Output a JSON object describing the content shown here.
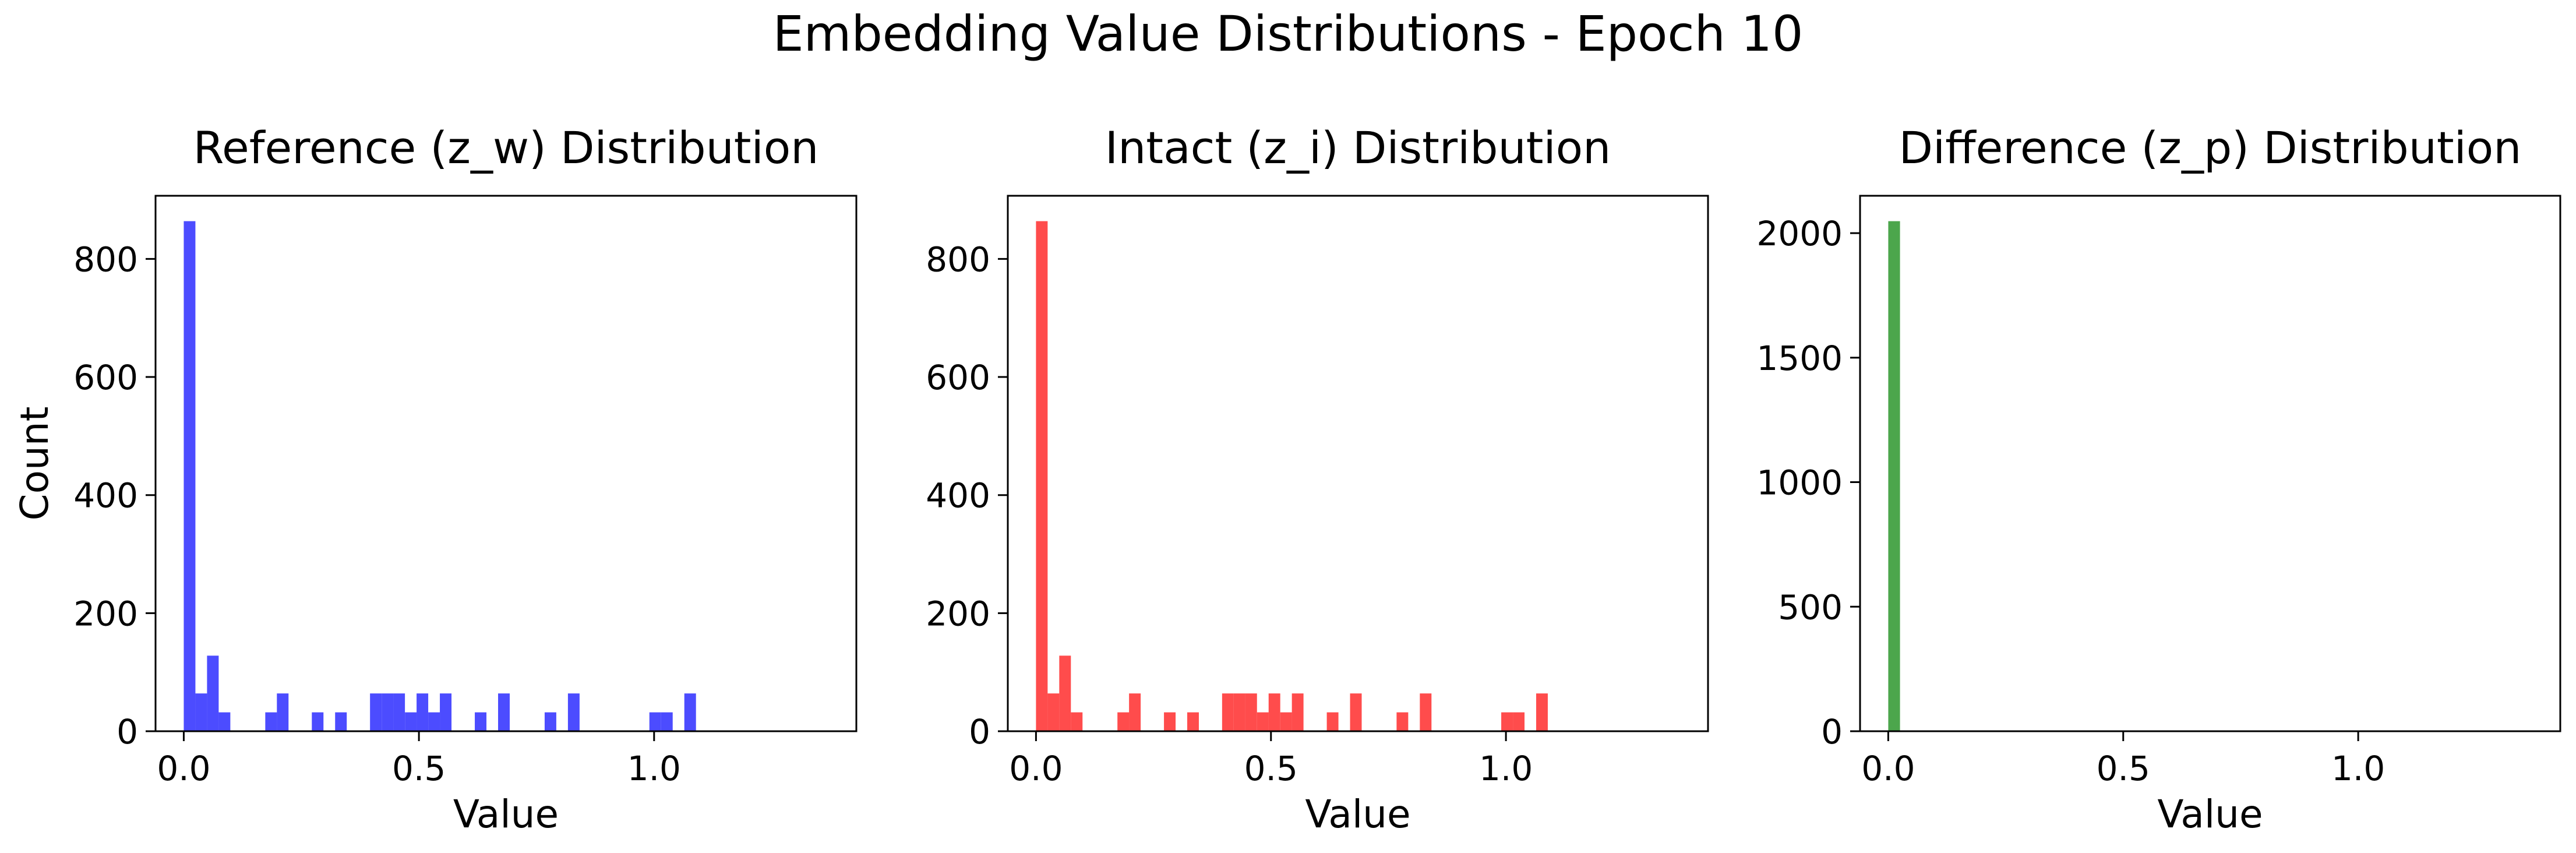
{
  "suptitle": "Embedding Value Distributions - Epoch 10",
  "chart_data": [
    {
      "type": "histogram",
      "title": "Reference (z_w) Distribution",
      "xlabel": "Value",
      "ylabel": "Count",
      "color": "#0000ff",
      "alpha": 0.7,
      "bin_width": 0.02475,
      "bins": [
        {
          "x": 0.0,
          "count": 864
        },
        {
          "x": 0.02475,
          "count": 64
        },
        {
          "x": 0.0495,
          "count": 128
        },
        {
          "x": 0.07425,
          "count": 32
        },
        {
          "x": 0.1733,
          "count": 32
        },
        {
          "x": 0.198,
          "count": 64
        },
        {
          "x": 0.2723,
          "count": 32
        },
        {
          "x": 0.3218,
          "count": 32
        },
        {
          "x": 0.396,
          "count": 64
        },
        {
          "x": 0.4208,
          "count": 64
        },
        {
          "x": 0.4455,
          "count": 64
        },
        {
          "x": 0.4703,
          "count": 32
        },
        {
          "x": 0.495,
          "count": 64
        },
        {
          "x": 0.5198,
          "count": 32
        },
        {
          "x": 0.5445,
          "count": 64
        },
        {
          "x": 0.6188,
          "count": 32
        },
        {
          "x": 0.6683,
          "count": 64
        },
        {
          "x": 0.7673,
          "count": 32
        },
        {
          "x": 0.8168,
          "count": 64
        },
        {
          "x": 0.99,
          "count": 32
        },
        {
          "x": 1.0148,
          "count": 32
        },
        {
          "x": 1.0643,
          "count": 64
        }
      ],
      "xticks": [
        0.0,
        0.5,
        1.0
      ],
      "xtick_labels": [
        "0.0",
        "0.5",
        "1.0"
      ],
      "yticks": [
        0,
        200,
        400,
        600,
        800
      ],
      "ytick_labels": [
        "0",
        "200",
        "400",
        "600",
        "800"
      ],
      "xlim": [
        -0.06,
        1.43
      ],
      "ylim": [
        0,
        907
      ]
    },
    {
      "type": "histogram",
      "title": "Intact (z_i) Distribution",
      "xlabel": "Value",
      "ylabel": "",
      "color": "#ff0000",
      "alpha": 0.7,
      "bin_width": 0.02475,
      "bins": [
        {
          "x": 0.0,
          "count": 864
        },
        {
          "x": 0.02475,
          "count": 64
        },
        {
          "x": 0.0495,
          "count": 128
        },
        {
          "x": 0.07425,
          "count": 32
        },
        {
          "x": 0.1733,
          "count": 32
        },
        {
          "x": 0.198,
          "count": 64
        },
        {
          "x": 0.2723,
          "count": 32
        },
        {
          "x": 0.3218,
          "count": 32
        },
        {
          "x": 0.396,
          "count": 64
        },
        {
          "x": 0.4208,
          "count": 64
        },
        {
          "x": 0.4455,
          "count": 64
        },
        {
          "x": 0.4703,
          "count": 32
        },
        {
          "x": 0.495,
          "count": 64
        },
        {
          "x": 0.5198,
          "count": 32
        },
        {
          "x": 0.5445,
          "count": 64
        },
        {
          "x": 0.6188,
          "count": 32
        },
        {
          "x": 0.6683,
          "count": 64
        },
        {
          "x": 0.7673,
          "count": 32
        },
        {
          "x": 0.8168,
          "count": 64
        },
        {
          "x": 0.99,
          "count": 32
        },
        {
          "x": 1.0148,
          "count": 32
        },
        {
          "x": 1.0643,
          "count": 64
        }
      ],
      "xticks": [
        0.0,
        0.5,
        1.0
      ],
      "xtick_labels": [
        "0.0",
        "0.5",
        "1.0"
      ],
      "yticks": [
        0,
        200,
        400,
        600,
        800
      ],
      "ytick_labels": [
        "0",
        "200",
        "400",
        "600",
        "800"
      ],
      "xlim": [
        -0.06,
        1.43
      ],
      "ylim": [
        0,
        907
      ]
    },
    {
      "type": "histogram",
      "title": "Difference (z_p) Distribution",
      "xlabel": "Value",
      "ylabel": "",
      "color": "#008000",
      "alpha": 0.7,
      "bin_width": 0.025,
      "bins": [
        {
          "x": 0.0,
          "count": 2048
        }
      ],
      "xticks": [
        0.0,
        0.5,
        1.0
      ],
      "xtick_labels": [
        "0.0",
        "0.5",
        "1.0"
      ],
      "yticks": [
        0,
        500,
        1000,
        1500,
        2000
      ],
      "ytick_labels": [
        "0",
        "500",
        "1000",
        "1500",
        "2000"
      ],
      "xlim": [
        -0.06,
        1.43
      ],
      "ylim": [
        0,
        2150
      ]
    }
  ]
}
